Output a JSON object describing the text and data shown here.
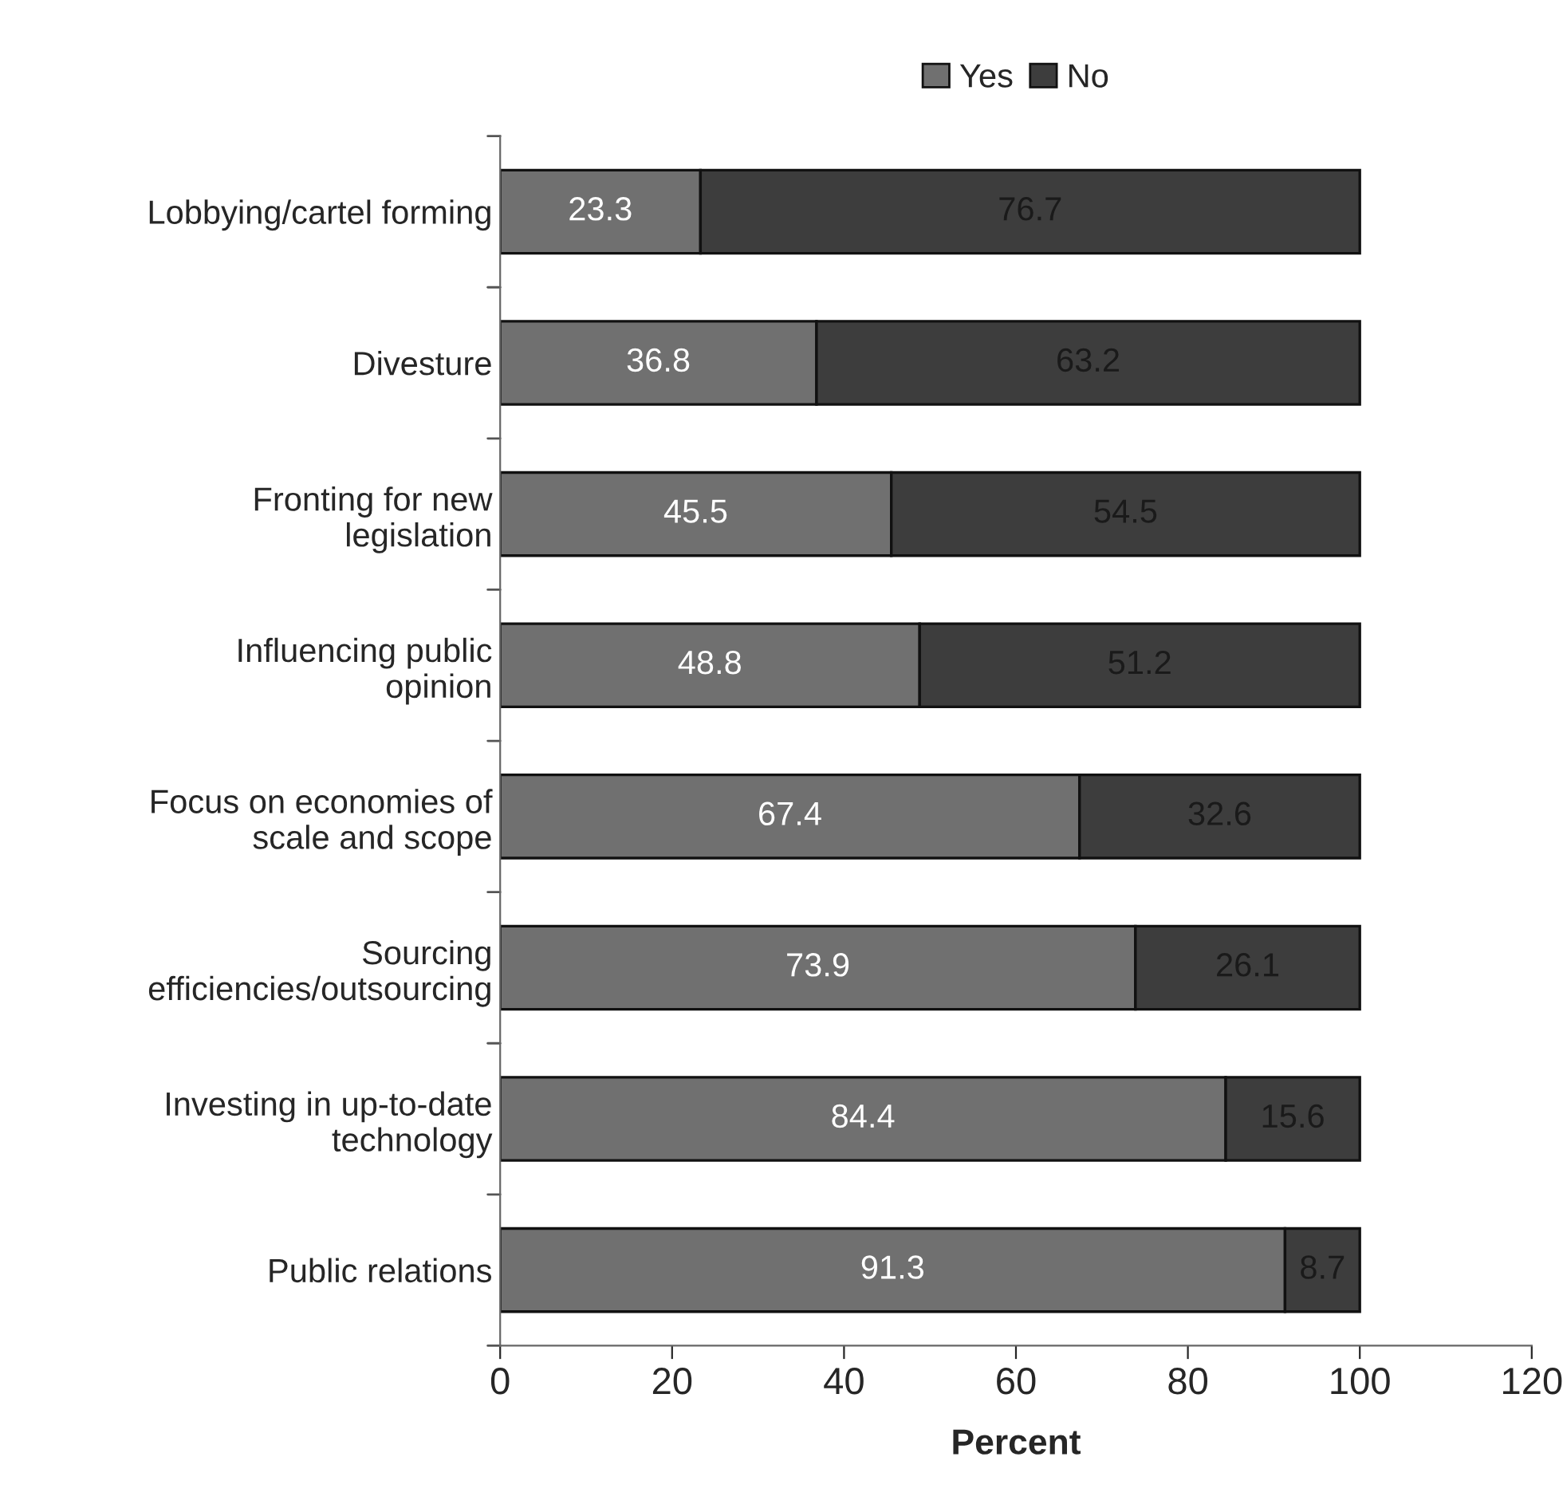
{
  "chart_data": {
    "type": "bar",
    "orientation": "horizontal",
    "stacked": true,
    "xlabel": "Percent",
    "categories": [
      "Lobbying/cartel forming",
      "Divesture",
      "Fronting for new\nlegislation",
      "Influencing public\nopinion",
      "Focus on economies of\nscale and scope",
      "Sourcing\nefficiencies/outsourcing",
      "Investing in up-to-date\ntechnology",
      "Public relations"
    ],
    "series": [
      {
        "name": "Yes",
        "color": "#707070",
        "values": [
          23.3,
          36.8,
          45.5,
          48.8,
          67.4,
          73.9,
          84.4,
          91.3
        ]
      },
      {
        "name": "No",
        "color": "#3d3d3d",
        "values": [
          76.7,
          63.2,
          54.5,
          51.2,
          32.6,
          26.1,
          15.6,
          8.7
        ]
      }
    ],
    "xlim": [
      0,
      120
    ],
    "xticks": [
      0,
      20,
      40,
      60,
      80,
      100,
      120
    ],
    "data_labels": true,
    "legend": "top",
    "grid": false
  }
}
